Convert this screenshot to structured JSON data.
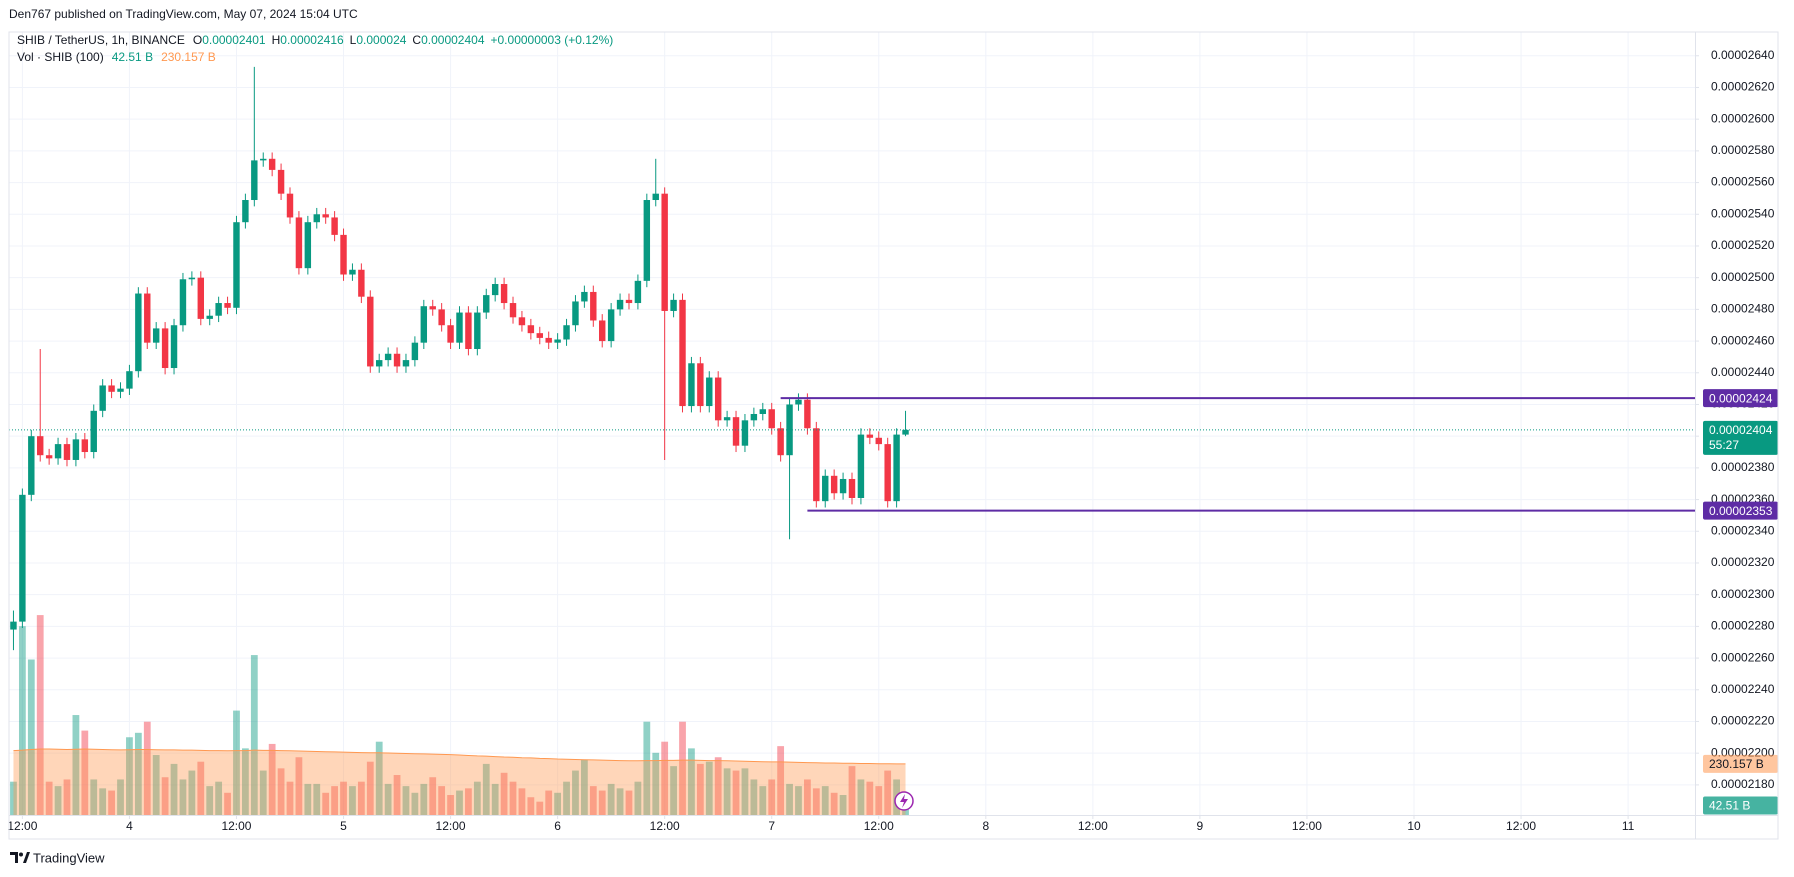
{
  "chart_data": {
    "type": "candlestick",
    "attribution": "Den767 published on TradingView.com, May 07, 2024 15:04 UTC",
    "title": "SHIB / TetherUS, 1h, BINANCE",
    "legend_labels": [
      "O",
      "H",
      "L",
      "C"
    ],
    "change": "+0.00000003 (+0.12%)",
    "countdown": "55:27",
    "footer": "TradingView",
    "up_color": "#089981",
    "down_color": "#f23645",
    "grid": true,
    "xlim": [
      -0.5,
      188.5
    ],
    "xticks": [
      {
        "value": 1,
        "label": "12:00"
      },
      {
        "value": 13,
        "label": "4"
      },
      {
        "value": 25,
        "label": "12:00"
      },
      {
        "value": 37,
        "label": "5"
      },
      {
        "value": 49,
        "label": "12:00"
      },
      {
        "value": 61,
        "label": "6"
      },
      {
        "value": 73,
        "label": "12:00"
      },
      {
        "value": 85,
        "label": "7"
      },
      {
        "value": 97,
        "label": "12:00"
      },
      {
        "value": 109,
        "label": "8"
      },
      {
        "value": 121,
        "label": "12:00"
      },
      {
        "value": 133,
        "label": "9"
      },
      {
        "value": 145,
        "label": "12:00"
      },
      {
        "value": 157,
        "label": "10"
      },
      {
        "value": 169,
        "label": "12:00"
      },
      {
        "value": 181,
        "label": "11"
      }
    ],
    "ylim": [
      2.161e-05,
      2.655e-05
    ],
    "yticks": [
      {
        "value": 2.18e-05,
        "label": "0.00002180"
      },
      {
        "value": 2.2e-05,
        "label": "0.00002200"
      },
      {
        "value": 2.22e-05,
        "label": "0.00002220"
      },
      {
        "value": 2.24e-05,
        "label": "0.00002240"
      },
      {
        "value": 2.26e-05,
        "label": "0.00002260"
      },
      {
        "value": 2.28e-05,
        "label": "0.00002280"
      },
      {
        "value": 2.3e-05,
        "label": "0.00002300"
      },
      {
        "value": 2.32e-05,
        "label": "0.00002320"
      },
      {
        "value": 2.34e-05,
        "label": "0.00002340"
      },
      {
        "value": 2.36e-05,
        "label": "0.00002360"
      },
      {
        "value": 2.38e-05,
        "label": "0.00002380"
      },
      {
        "value": 2.4e-05,
        "label": "0.00002400"
      },
      {
        "value": 2.42e-05,
        "label": "0.00002420"
      },
      {
        "value": 2.44e-05,
        "label": "0.00002440"
      },
      {
        "value": 2.46e-05,
        "label": "0.00002460"
      },
      {
        "value": 2.48e-05,
        "label": "0.00002480"
      },
      {
        "value": 2.5e-05,
        "label": "0.00002500"
      },
      {
        "value": 2.52e-05,
        "label": "0.00002520"
      },
      {
        "value": 2.54e-05,
        "label": "0.00002540"
      },
      {
        "value": 2.56e-05,
        "label": "0.00002560"
      },
      {
        "value": 2.58e-05,
        "label": "0.00002580"
      },
      {
        "value": 2.6e-05,
        "label": "0.00002600"
      },
      {
        "value": 2.62e-05,
        "label": "0.00002620"
      },
      {
        "value": 2.64e-05,
        "label": "0.00002640"
      }
    ],
    "open": [
      2.278e-05,
      2.283e-05,
      2.363e-05,
      2.4e-05,
      2.388e-05,
      2.386e-05,
      2.395e-05,
      2.385e-05,
      2.398e-05,
      2.39e-05,
      2.416e-05,
      2.432e-05,
      2.428e-05,
      2.43e-05,
      2.441e-05,
      2.49e-05,
      2.459e-05,
      2.468e-05,
      2.443e-05,
      2.47e-05,
      2.499e-05,
      2.5e-05,
      2.474e-05,
      2.476e-05,
      2.484e-05,
      2.481e-05,
      2.535e-05,
      2.549e-05,
      2.574e-05,
      2.575e-05,
      2.568e-05,
      2.553e-05,
      2.538e-05,
      2.506e-05,
      2.535e-05,
      2.54e-05,
      2.538e-05,
      2.527e-05,
      2.502e-05,
      2.505e-05,
      2.488e-05,
      2.444e-05,
      2.448e-05,
      2.452e-05,
      2.444e-05,
      2.448e-05,
      2.459e-05,
      2.482e-05,
      2.48e-05,
      2.47e-05,
      2.459e-05,
      2.478e-05,
      2.455e-05,
      2.478e-05,
      2.489e-05,
      2.496e-05,
      2.484e-05,
      2.475e-05,
      2.47e-05,
      2.465e-05,
      2.462e-05,
      2.459e-05,
      2.461e-05,
      2.47e-05,
      2.485e-05,
      2.491e-05,
      2.473e-05,
      2.46e-05,
      2.48e-05,
      2.486e-05,
      2.484e-05,
      2.498e-05,
      2.549e-05,
      2.553e-05,
      2.479e-05,
      2.486e-05,
      2.419e-05,
      2.446e-05,
      2.419e-05,
      2.437e-05,
      2.41e-05,
      2.412e-05,
      2.394e-05,
      2.41e-05,
      2.414e-05,
      2.417e-05,
      2.405e-05,
      2.388e-05,
      2.42e-05,
      2.423e-05,
      2.405e-05,
      2.359e-05,
      2.375e-05,
      2.364e-05,
      2.373e-05,
      2.361e-05,
      2.401e-05,
      2.399e-05,
      2.395e-05,
      2.359e-05,
      2.401e-05
    ],
    "high": [
      2.29e-05,
      2.367e-05,
      2.404e-05,
      2.455e-05,
      2.392e-05,
      2.399e-05,
      2.399e-05,
      2.402e-05,
      2.402e-05,
      2.42e-05,
      2.436e-05,
      2.436e-05,
      2.434e-05,
      2.445e-05,
      2.494e-05,
      2.494e-05,
      2.472e-05,
      2.472e-05,
      2.474e-05,
      2.503e-05,
      2.504e-05,
      2.504e-05,
      2.48e-05,
      2.488e-05,
      2.488e-05,
      2.539e-05,
      2.553e-05,
      2.633e-05,
      2.579e-05,
      2.579e-05,
      2.572e-05,
      2.557e-05,
      2.542e-05,
      2.539e-05,
      2.544e-05,
      2.544e-05,
      2.542e-05,
      2.531e-05,
      2.509e-05,
      2.509e-05,
      2.492e-05,
      2.452e-05,
      2.456e-05,
      2.456e-05,
      2.452e-05,
      2.463e-05,
      2.486e-05,
      2.486e-05,
      2.484e-05,
      2.474e-05,
      2.482e-05,
      2.482e-05,
      2.482e-05,
      2.493e-05,
      2.5e-05,
      2.5e-05,
      2.488e-05,
      2.479e-05,
      2.474e-05,
      2.469e-05,
      2.466e-05,
      2.465e-05,
      2.474e-05,
      2.489e-05,
      2.495e-05,
      2.495e-05,
      2.477e-05,
      2.484e-05,
      2.49e-05,
      2.49e-05,
      2.502e-05,
      2.553e-05,
      2.575e-05,
      2.557e-05,
      2.49e-05,
      2.49e-05,
      2.45e-05,
      2.45e-05,
      2.441e-05,
      2.441e-05,
      2.416e-05,
      2.416e-05,
      2.414e-05,
      2.418e-05,
      2.421e-05,
      2.421e-05,
      2.409e-05,
      2.424e-05,
      2.427e-05,
      2.427e-05,
      2.409e-05,
      2.379e-05,
      2.379e-05,
      2.377e-05,
      2.377e-05,
      2.405e-05,
      2.405e-05,
      2.403e-05,
      2.399e-05,
      2.405e-05,
      2.416e-05
    ],
    "low": [
      2.265e-05,
      2.279e-05,
      2.359e-05,
      2.384e-05,
      2.382e-05,
      2.382e-05,
      2.381e-05,
      2.381e-05,
      2.386e-05,
      2.386e-05,
      2.412e-05,
      2.424e-05,
      2.424e-05,
      2.426e-05,
      2.437e-05,
      2.455e-05,
      2.455e-05,
      2.439e-05,
      2.439e-05,
      2.466e-05,
      2.495e-05,
      2.47e-05,
      2.47e-05,
      2.472e-05,
      2.477e-05,
      2.477e-05,
      2.531e-05,
      2.545e-05,
      2.57e-05,
      2.564e-05,
      2.549e-05,
      2.534e-05,
      2.502e-05,
      2.502e-05,
      2.531e-05,
      2.534e-05,
      2.523e-05,
      2.498e-05,
      2.498e-05,
      2.484e-05,
      2.44e-05,
      2.44e-05,
      2.444e-05,
      2.44e-05,
      2.44e-05,
      2.444e-05,
      2.455e-05,
      2.476e-05,
      2.466e-05,
      2.455e-05,
      2.455e-05,
      2.451e-05,
      2.451e-05,
      2.474e-05,
      2.485e-05,
      2.48e-05,
      2.471e-05,
      2.466e-05,
      2.461e-05,
      2.458e-05,
      2.455e-05,
      2.455e-05,
      2.457e-05,
      2.466e-05,
      2.481e-05,
      2.469e-05,
      2.456e-05,
      2.456e-05,
      2.476e-05,
      2.48e-05,
      2.48e-05,
      2.494e-05,
      2.545e-05,
      2.385e-05,
      2.475e-05,
      2.415e-05,
      2.415e-05,
      2.415e-05,
      2.415e-05,
      2.406e-05,
      2.406e-05,
      2.39e-05,
      2.39e-05,
      2.406e-05,
      2.41e-05,
      2.401e-05,
      2.384e-05,
      2.335e-05,
      2.416e-05,
      2.401e-05,
      2.355e-05,
      2.355e-05,
      2.36e-05,
      2.36e-05,
      2.357e-05,
      2.357e-05,
      2.395e-05,
      2.391e-05,
      2.355e-05,
      2.355e-05,
      2.4e-05
    ],
    "close": [
      2.283e-05,
      2.363e-05,
      2.4e-05,
      2.388e-05,
      2.386e-05,
      2.395e-05,
      2.385e-05,
      2.398e-05,
      2.39e-05,
      2.416e-05,
      2.432e-05,
      2.428e-05,
      2.43e-05,
      2.441e-05,
      2.49e-05,
      2.459e-05,
      2.468e-05,
      2.443e-05,
      2.47e-05,
      2.499e-05,
      2.5e-05,
      2.474e-05,
      2.476e-05,
      2.484e-05,
      2.481e-05,
      2.535e-05,
      2.549e-05,
      2.574e-05,
      2.575e-05,
      2.568e-05,
      2.553e-05,
      2.538e-05,
      2.506e-05,
      2.535e-05,
      2.54e-05,
      2.538e-05,
      2.527e-05,
      2.502e-05,
      2.505e-05,
      2.488e-05,
      2.444e-05,
      2.448e-05,
      2.452e-05,
      2.444e-05,
      2.448e-05,
      2.459e-05,
      2.482e-05,
      2.48e-05,
      2.47e-05,
      2.459e-05,
      2.478e-05,
      2.455e-05,
      2.478e-05,
      2.489e-05,
      2.496e-05,
      2.484e-05,
      2.475e-05,
      2.47e-05,
      2.465e-05,
      2.462e-05,
      2.459e-05,
      2.461e-05,
      2.47e-05,
      2.485e-05,
      2.491e-05,
      2.473e-05,
      2.46e-05,
      2.48e-05,
      2.486e-05,
      2.484e-05,
      2.498e-05,
      2.549e-05,
      2.553e-05,
      2.479e-05,
      2.486e-05,
      2.419e-05,
      2.446e-05,
      2.419e-05,
      2.437e-05,
      2.41e-05,
      2.412e-05,
      2.394e-05,
      2.41e-05,
      2.414e-05,
      2.417e-05,
      2.405e-05,
      2.388e-05,
      2.42e-05,
      2.423e-05,
      2.405e-05,
      2.359e-05,
      2.375e-05,
      2.364e-05,
      2.373e-05,
      2.361e-05,
      2.401e-05,
      2.399e-05,
      2.395e-05,
      2.359e-05,
      2.401e-05,
      2.404e-05
    ],
    "hlines": [
      {
        "value": 2.424e-05,
        "start": 86,
        "color": "#5e2ca5"
      },
      {
        "value": 2.353e-05,
        "start": 89,
        "color": "#5e2ca5"
      }
    ],
    "volume": {
      "title": "Vol · SHIB (100)",
      "ylim": [
        0,
        3525
      ],
      "up_color": "rgba(8,153,129,0.45)",
      "down_color": "rgba(242,54,69,0.45)",
      "values": [
        150,
        850,
        700,
        900,
        150,
        130,
        160,
        450,
        380,
        160,
        120,
        110,
        160,
        350,
        370,
        420,
        270,
        170,
        230,
        160,
        200,
        240,
        130,
        150,
        100,
        470,
        300,
        720,
        200,
        320,
        210,
        150,
        260,
        140,
        140,
        100,
        130,
        150,
        130,
        150,
        240,
        330,
        140,
        180,
        130,
        100,
        140,
        170,
        130,
        90,
        110,
        120,
        150,
        230,
        140,
        190,
        150,
        120,
        80,
        60,
        110,
        100,
        150,
        200,
        250,
        130,
        110,
        140,
        120,
        110,
        150,
        420,
        280,
        330,
        220,
        420,
        300,
        230,
        240,
        260,
        210,
        200,
        210,
        160,
        130,
        160,
        310,
        140,
        130,
        160,
        120,
        130,
        100,
        90,
        220,
        160,
        150,
        130,
        200,
        160,
        42.51
      ],
      "last_value_label": "42.51 B",
      "ma": {
        "color": "#ff9850",
        "values": [
          290,
          292,
          295,
          297,
          297,
          296,
          295,
          296,
          297,
          296,
          295,
          294,
          293,
          294,
          295,
          295,
          294,
          293,
          293,
          292,
          292,
          291,
          290,
          290,
          289,
          290,
          290,
          292,
          291,
          291,
          290,
          289,
          288,
          287,
          286,
          285,
          284,
          283,
          282,
          281,
          280,
          280,
          279,
          278,
          277,
          276,
          275,
          274,
          273,
          272,
          270,
          268,
          266,
          265,
          263,
          261,
          260,
          258,
          257,
          255,
          254,
          252,
          251,
          250,
          249,
          248,
          247,
          246,
          245,
          244,
          244,
          245,
          245,
          246,
          246,
          247,
          247,
          246,
          245,
          245,
          244,
          243,
          242,
          241,
          240,
          239,
          239,
          238,
          237,
          236,
          235,
          234,
          234,
          233,
          233,
          232,
          232,
          231,
          231,
          230,
          230.157
        ],
        "last_value_label": "230.157 B"
      }
    }
  }
}
